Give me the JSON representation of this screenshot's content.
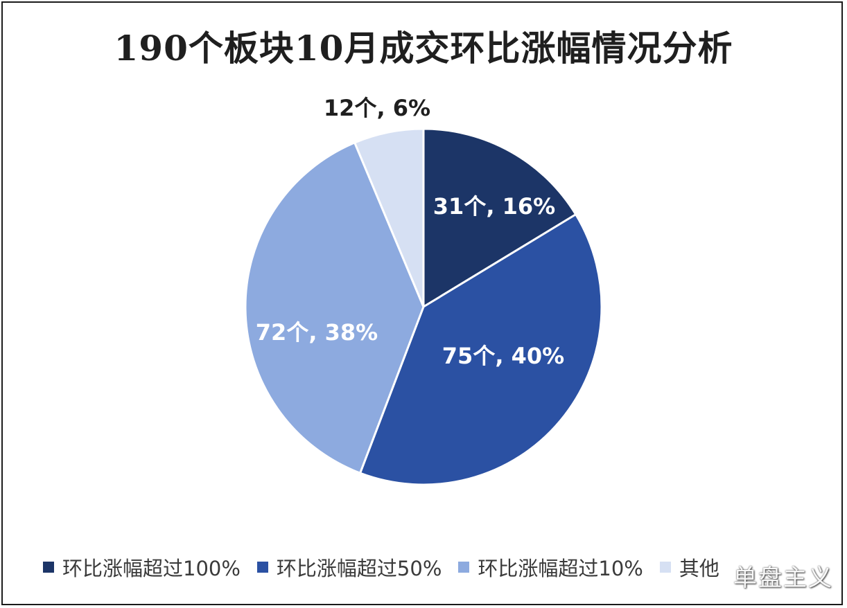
{
  "chart_data": {
    "type": "pie",
    "title": "190个板块10月成交环比涨幅情况分析",
    "slices": [
      {
        "name": "环比涨幅超过100%",
        "count": 31,
        "percent": 16,
        "label": "31个, 16%",
        "color": "#1c3567",
        "label_color": "#ffffff"
      },
      {
        "name": "环比涨幅超过50%",
        "count": 75,
        "percent": 40,
        "label": "75个, 40%",
        "color": "#2b51a3",
        "label_color": "#ffffff"
      },
      {
        "name": "环比涨幅超过10%",
        "count": 72,
        "percent": 38,
        "label": "72个, 38%",
        "color": "#8daadf",
        "label_color": "#ffffff"
      },
      {
        "name": "其他",
        "count": 12,
        "percent": 6,
        "label": "12个, 6%",
        "color": "#d6e0f3",
        "label_color": "#1f1f1f"
      }
    ],
    "legend_position": "bottom"
  },
  "watermark": "单盘主义"
}
